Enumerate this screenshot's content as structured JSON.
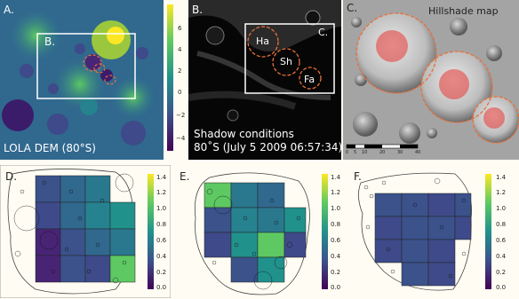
{
  "panels": {
    "A": {
      "label": "A.",
      "caption": "LOLA DEM (80°S)",
      "inset_label": "B.",
      "colorbar_ticks": [
        "6",
        "4",
        "2",
        "0",
        "−2",
        "−4"
      ]
    },
    "B": {
      "label": "B.",
      "inset_label": "C.",
      "crater_labels": [
        "Ha",
        "Sh",
        "Fa"
      ],
      "caption_line1": "Shadow conditions",
      "caption_line2": "80˚S (July 5 2009 06:57:34)"
    },
    "C": {
      "label": "C.",
      "title": "Hillshade map",
      "scale_ticks": [
        "0",
        "5",
        "10",
        "20",
        "30",
        "40"
      ]
    },
    "D": {
      "label": "D."
    },
    "E": {
      "label": "E."
    },
    "F": {
      "label": "F."
    },
    "colorbar_ticks": [
      "1.4",
      "1.2",
      "1.0",
      "0.8",
      "0.6",
      "0.4",
      "0.2",
      "0.0"
    ]
  },
  "colors": {
    "accent_dashed": "#e8703a",
    "viridis_low": "#440154",
    "viridis_high": "#fde725"
  }
}
